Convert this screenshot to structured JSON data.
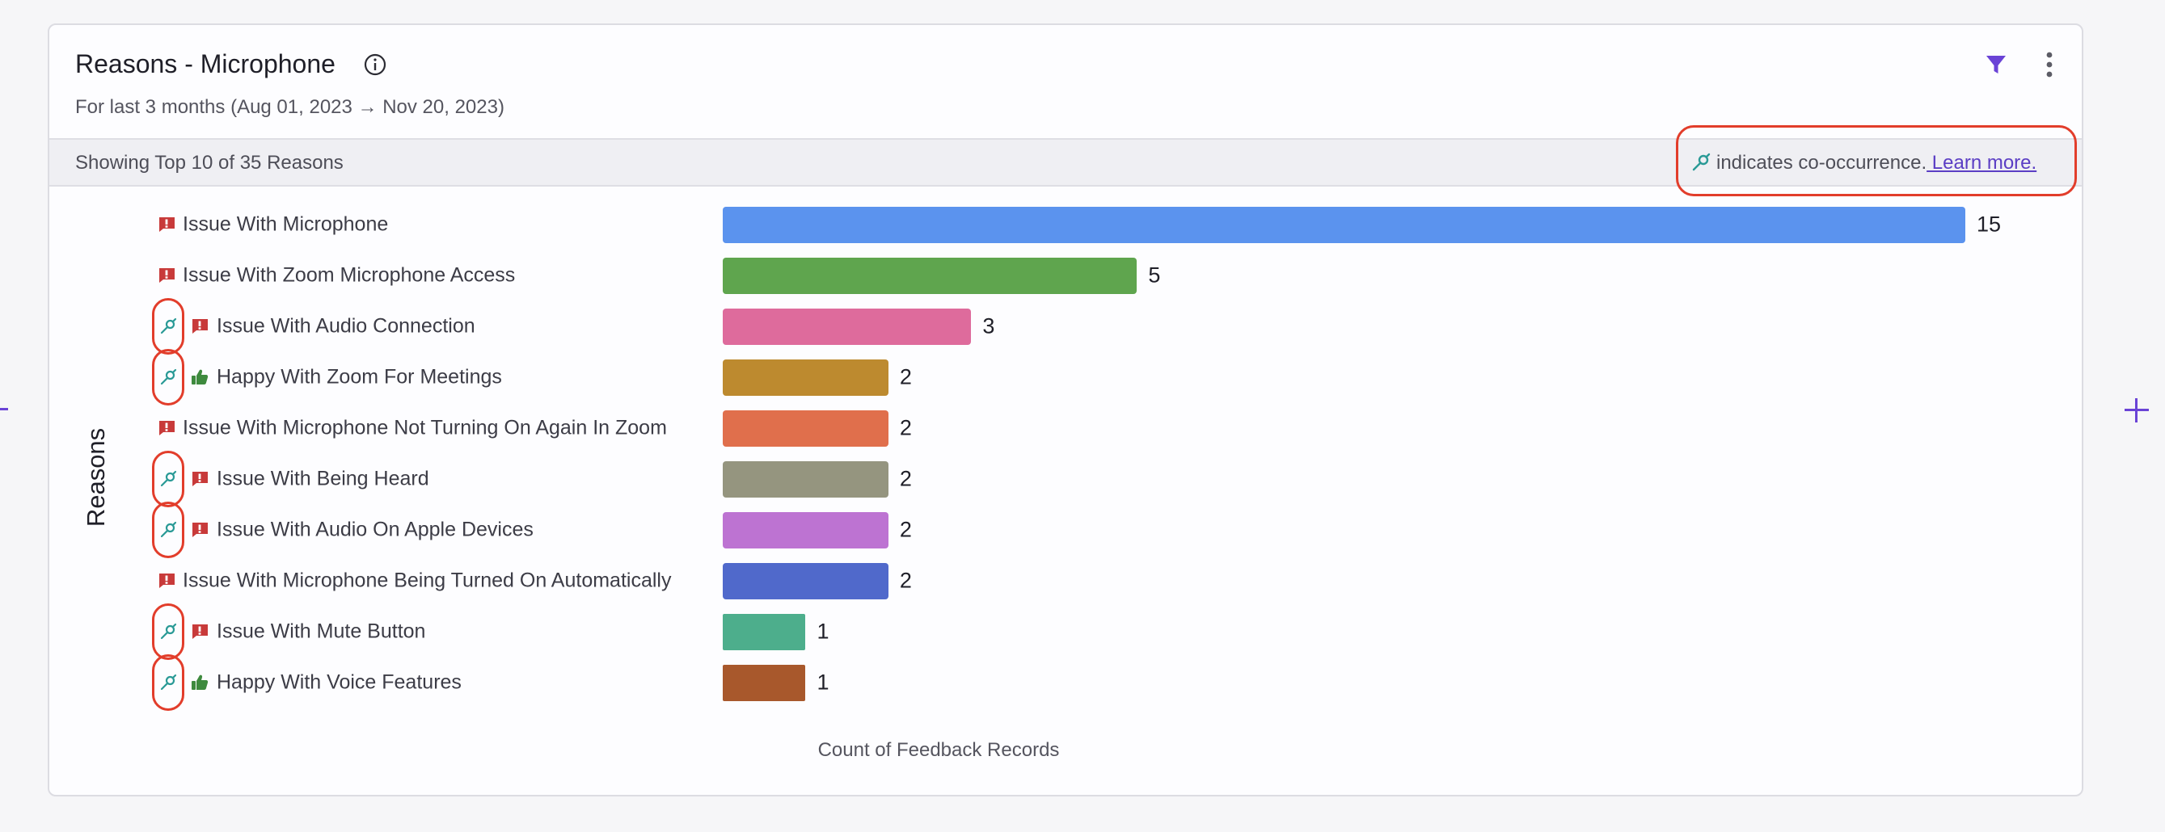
{
  "header": {
    "title": "Reasons - Microphone",
    "subtitle": "For last 3 months (Aug 01, 2023 → Nov 20, 2023)",
    "showing": "Showing Top 10 of 35 Reasons",
    "cooccurrence_text": "indicates co-occurrence.",
    "learn_more": " Learn more."
  },
  "icons": {
    "info": "info-icon",
    "filter": "filter-icon",
    "more": "more-vertical-icon",
    "cooccurrence": "co-occurrence-icon",
    "issue": "issue-flag-icon",
    "happy": "thumbs-up-icon",
    "expand": "plus-icon"
  },
  "colors": {
    "accent": "#6a43d6",
    "issue": "#c83a3a",
    "happy": "#3e8a3e",
    "cooccurrence": "#2a9a96",
    "highlight": "#e23d2b"
  },
  "chart_data": {
    "type": "bar",
    "orientation": "horizontal",
    "xlabel": "Count of Feedback Records",
    "ylabel": "Reasons",
    "xlim": [
      0,
      15
    ],
    "categories": [
      "Issue With Microphone",
      "Issue With Zoom Microphone Access",
      "Issue With Audio Connection",
      "Happy With Zoom For Meetings",
      "Issue With Microphone Not Turning On Again In Zoom",
      "Issue With Being Heard",
      "Issue With Audio On Apple Devices",
      "Issue With Microphone Being Turned On Automatically",
      "Issue With Mute Button",
      "Happy With Voice Features"
    ],
    "values": [
      15,
      5,
      3,
      2,
      2,
      2,
      2,
      2,
      1,
      1
    ],
    "sentiment": [
      "issue",
      "issue",
      "issue",
      "happy",
      "issue",
      "issue",
      "issue",
      "issue",
      "issue",
      "happy"
    ],
    "cooccurrence": [
      false,
      false,
      true,
      true,
      false,
      true,
      true,
      false,
      true,
      true
    ],
    "bar_colors": [
      "#5b93ee",
      "#5fa54e",
      "#de6b9c",
      "#bd8a2f",
      "#e06f4c",
      "#95957f",
      "#bd73d2",
      "#5069cb",
      "#4dae8c",
      "#a8582c"
    ],
    "grid": false,
    "legend": "none"
  }
}
